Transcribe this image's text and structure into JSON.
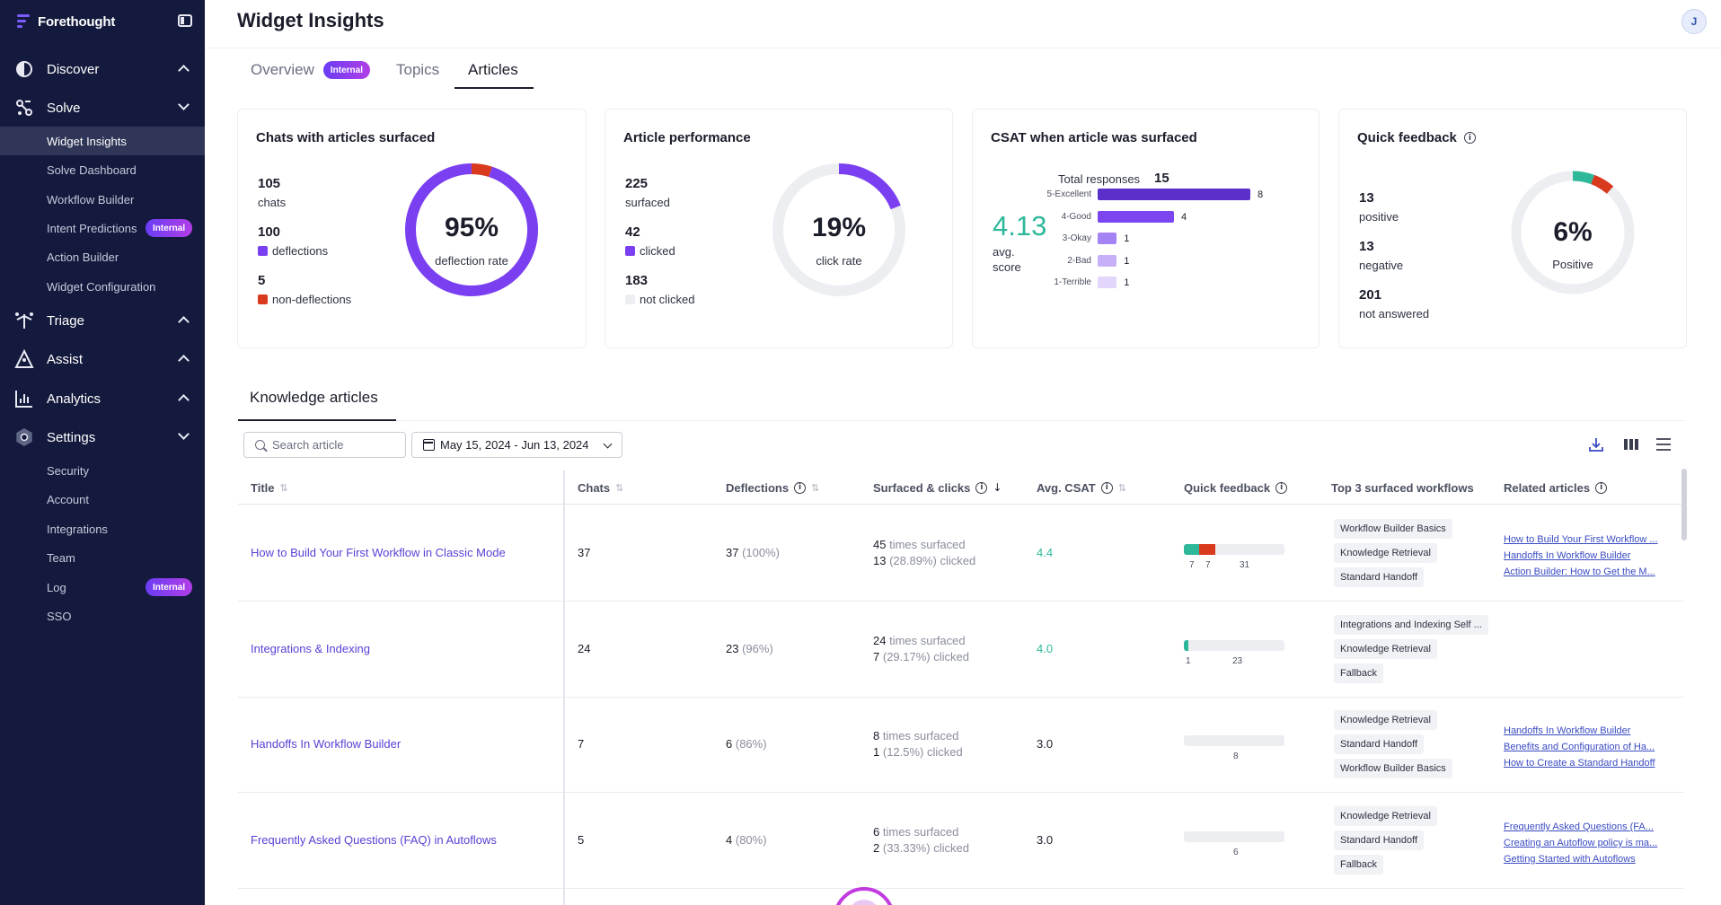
{
  "app": {
    "brand": "Forethought",
    "page_title": "Widget Insights",
    "avatar_initial": "J"
  },
  "sidebar": {
    "sections": [
      {
        "label": "Discover",
        "icon": "discover-icon",
        "expanded": false
      },
      {
        "label": "Solve",
        "icon": "solve-icon",
        "expanded": true
      },
      {
        "label": "Triage",
        "icon": "triage-icon",
        "expanded": false
      },
      {
        "label": "Assist",
        "icon": "assist-icon",
        "expanded": false
      },
      {
        "label": "Analytics",
        "icon": "analytics-icon",
        "expanded": false
      },
      {
        "label": "Settings",
        "icon": "gear-icon",
        "expanded": true
      }
    ],
    "solve_items": [
      "Widget Insights",
      "Solve Dashboard",
      "Workflow Builder",
      "Intent Predictions",
      "Action Builder",
      "Widget Configuration"
    ],
    "settings_items": [
      "Security",
      "Account",
      "Integrations",
      "Team",
      "Log",
      "SSO"
    ],
    "internal_badge": "Internal",
    "active_item": "Widget Insights"
  },
  "tabs": [
    {
      "label": "Overview",
      "badge": "Internal"
    },
    {
      "label": "Topics"
    },
    {
      "label": "Articles",
      "active": true
    }
  ],
  "cards": {
    "chats": {
      "title": "Chats with articles surfaced",
      "total": "105",
      "total_label": "chats",
      "deflections": "100",
      "deflections_label": "deflections",
      "non_deflections": "5",
      "non_deflections_label": "non-deflections",
      "donut_value": "95%",
      "donut_label": "deflection rate",
      "donut_fraction": 0.95
    },
    "performance": {
      "title": "Article performance",
      "surfaced": "225",
      "surfaced_label": "surfaced",
      "clicked": "42",
      "clicked_label": "clicked",
      "not_clicked": "183",
      "not_clicked_label": "not clicked",
      "donut_value": "19%",
      "donut_label": "click rate",
      "donut_fraction": 0.19
    },
    "csat": {
      "title": "CSAT when article was surfaced",
      "total_label": "Total responses",
      "total_value": "15",
      "score": "4.13",
      "score_label_1": "avg.",
      "score_label_2": "score",
      "bars": [
        {
          "label": "5-Excellent",
          "value": 8,
          "color": "#5b2fc9"
        },
        {
          "label": "4-Good",
          "value": 4,
          "color": "#7b46f0"
        },
        {
          "label": "3-Okay",
          "value": 1,
          "color": "#a683f5"
        },
        {
          "label": "2-Bad",
          "value": 1,
          "color": "#c7b0f8"
        },
        {
          "label": "1-Terrible",
          "value": 1,
          "color": "#e2d6fb"
        }
      ]
    },
    "feedback": {
      "title": "Quick feedback",
      "positive": "13",
      "positive_label": "positive",
      "negative": "13",
      "negative_label": "negative",
      "not_answered": "201",
      "not_answered_label": "not answered",
      "donut_value": "6%",
      "donut_label": "Positive"
    }
  },
  "knowledge": {
    "tab_label": "Knowledge articles",
    "search_placeholder": "Search article",
    "date_range": "May 15, 2024 - Jun 13, 2024",
    "columns": [
      "Title",
      "Chats",
      "Deflections",
      "Surfaced & clicks",
      "Avg. CSAT",
      "Quick feedback",
      "Top 3 surfaced workflows",
      "Related articles"
    ],
    "rows": [
      {
        "title": "How to Build Your First Workflow in Classic Mode",
        "chats": "37",
        "deflections": "37",
        "deflections_pct": "(100%)",
        "surfaced": "45",
        "surfaced_text": "times surfaced",
        "clicked": "13",
        "clicked_text": "(28.89%) clicked",
        "csat": "4.4",
        "csat_green": true,
        "qf_positive": 7,
        "qf_negative": 7,
        "qf_none": 31,
        "qf_labels": [
          "7",
          "7",
          "31"
        ],
        "workflows": [
          "Workflow Builder Basics",
          "Knowledge Retrieval",
          "Standard Handoff"
        ],
        "related": [
          "How to Build Your First Workflow ...",
          "Handoffs In Workflow Builder",
          "Action Builder: How to Get the M..."
        ]
      },
      {
        "title": "Integrations & Indexing",
        "chats": "24",
        "deflections": "23",
        "deflections_pct": "(96%)",
        "surfaced": "24",
        "surfaced_text": "times surfaced",
        "clicked": "7",
        "clicked_text": "(29.17%) clicked",
        "csat": "4.0",
        "csat_green": true,
        "qf_positive": 1,
        "qf_negative": 0,
        "qf_none": 23,
        "qf_labels": [
          "1",
          "23"
        ],
        "workflows": [
          "Integrations and Indexing Self ...",
          "Knowledge Retrieval",
          "Fallback"
        ],
        "related": []
      },
      {
        "title": "Handoffs In Workflow Builder",
        "chats": "7",
        "deflections": "6",
        "deflections_pct": "(86%)",
        "surfaced": "8",
        "surfaced_text": "times surfaced",
        "clicked": "1",
        "clicked_text": "(12.5%) clicked",
        "csat": "3.0",
        "csat_green": false,
        "qf_positive": 0,
        "qf_negative": 0,
        "qf_none": 8,
        "qf_labels": [
          "8"
        ],
        "workflows": [
          "Knowledge Retrieval",
          "Standard Handoff",
          "Workflow Builder Basics"
        ],
        "related": [
          "Handoffs In Workflow Builder",
          "Benefits and Configuration of Ha...",
          "How to Create a Standard Handoff"
        ]
      },
      {
        "title": "Frequently Asked Questions (FAQ) in Autoflows",
        "chats": "5",
        "deflections": "4",
        "deflections_pct": "(80%)",
        "surfaced": "6",
        "surfaced_text": "times surfaced",
        "clicked": "2",
        "clicked_text": "(33.33%) clicked",
        "csat": "3.0",
        "csat_green": false,
        "qf_positive": 0,
        "qf_negative": 0,
        "qf_none": 6,
        "qf_labels": [
          "6"
        ],
        "workflows": [
          "Knowledge Retrieval",
          "Standard Handoff",
          "Fallback"
        ],
        "related": [
          "Frequently Asked Questions (FA...",
          "Creating an Autoflow policy is ma...",
          "Getting Started with Autoflows"
        ]
      }
    ]
  },
  "colors": {
    "sidebar_bg": "#141a3d",
    "accent_purple": "#7b3ff2",
    "negative_red": "#d93a1e",
    "positive_teal": "#2eb89a",
    "track_gray": "#eceef2"
  }
}
